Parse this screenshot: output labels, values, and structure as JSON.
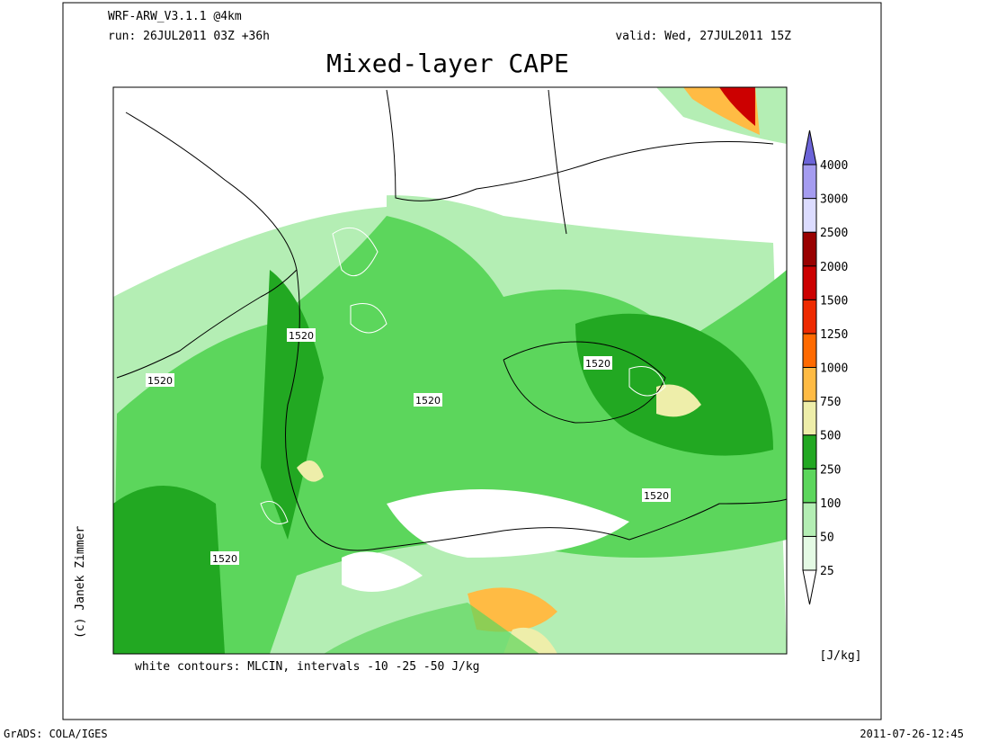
{
  "header": {
    "model": "WRF-ARW_V3.1.1 @4km",
    "run": "run: 26JUL2011 03Z +36h",
    "valid": "valid: Wed, 27JUL2011 15Z",
    "title": "Mixed-layer CAPE"
  },
  "map": {
    "contour_labels": [
      "1520",
      "1520",
      "1520",
      "1520",
      "1520",
      "1520"
    ],
    "note": "white contours: MLCIN, intervals -10 -25 -50 J/kg",
    "copyright": "(c) Janek Zimmer"
  },
  "colorbar": {
    "levels": [
      25,
      50,
      100,
      250,
      500,
      750,
      1000,
      1250,
      1500,
      2000,
      2500,
      3000,
      4000
    ],
    "colors": [
      "#ffffff",
      "#e4fae4",
      "#b4eeb4",
      "#5cd65c",
      "#22a822",
      "#eeeeaa",
      "#ffbb44",
      "#ff6a00",
      "#ee2a00",
      "#cc0000",
      "#990000",
      "#dcdcff",
      "#a59cf0",
      "#6c64d8",
      "#3c2cb4"
    ],
    "unit": "[J/kg]"
  },
  "footer": {
    "left": "GrADS: COLA/IGES",
    "right": "2011-07-26-12:45"
  }
}
